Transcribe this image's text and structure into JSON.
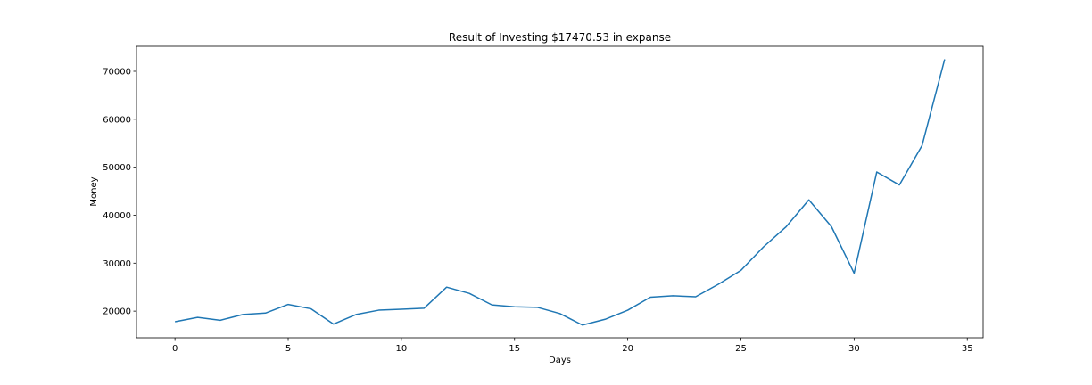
{
  "chart_data": {
    "type": "line",
    "title": "Result of Investing $17470.53 in expanse",
    "xlabel": "Days",
    "ylabel": "Money",
    "xlim": [
      -1.7,
      35.7
    ],
    "ylim": [
      14450,
      75200
    ],
    "xticks": [
      0,
      5,
      10,
      15,
      20,
      25,
      30,
      35
    ],
    "yticks": [
      20000,
      30000,
      40000,
      50000,
      60000,
      70000
    ],
    "ytick_labels": [
      "20000",
      "30000",
      "40000",
      "50000",
      "60000",
      "70000"
    ],
    "grid": false,
    "series": [
      {
        "color": "#1f77b4",
        "x": [
          0,
          1,
          2,
          3,
          4,
          5,
          6,
          7,
          8,
          9,
          10,
          11,
          12,
          13,
          14,
          15,
          16,
          17,
          18,
          19,
          20,
          21,
          22,
          23,
          24,
          25,
          26,
          27,
          28,
          29,
          30,
          31,
          32,
          33,
          34
        ],
        "y": [
          17800,
          18700,
          18100,
          19300,
          19600,
          21400,
          20500,
          17300,
          19300,
          20200,
          20400,
          20600,
          25000,
          23700,
          21300,
          20900,
          20800,
          19500,
          17100,
          18300,
          20200,
          22900,
          23200,
          23000,
          25600,
          28500,
          33400,
          37600,
          43200,
          37600,
          27900,
          49000,
          46300,
          54500,
          72500
        ]
      }
    ]
  }
}
